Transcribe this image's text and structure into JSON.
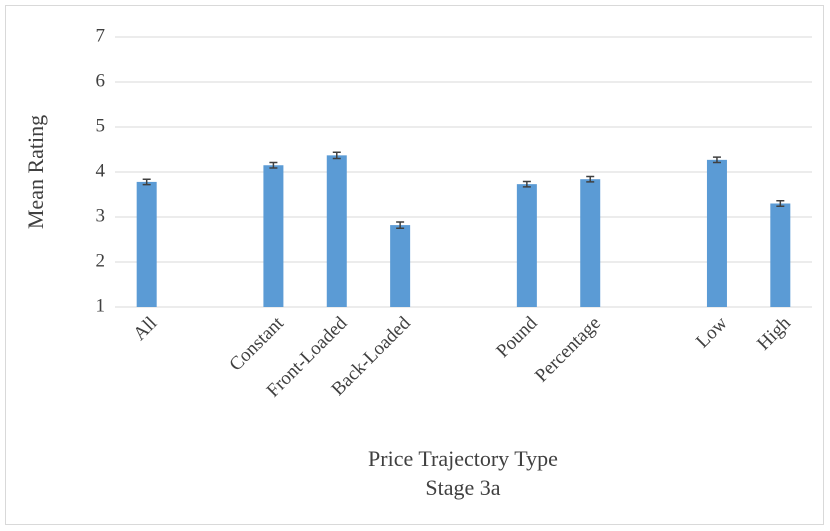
{
  "chart_data": {
    "type": "bar",
    "ylabel": "Mean Rating",
    "xlabel": "Price Trajectory Type",
    "note": "Stage 3a",
    "categories": [
      "All",
      null,
      "Constant",
      "Front-Loaded",
      "Back-Loaded",
      null,
      "Pound",
      "Percentage",
      null,
      "Low",
      "High"
    ],
    "values": [
      3.78,
      null,
      4.15,
      4.37,
      2.82,
      null,
      3.73,
      3.84,
      null,
      4.27,
      3.3
    ],
    "errors": [
      0.06,
      null,
      0.06,
      0.07,
      0.07,
      null,
      0.06,
      0.06,
      null,
      0.06,
      0.06
    ],
    "color": "#5b9bd5",
    "ylim": [
      1,
      7
    ],
    "yticks": [
      1,
      2,
      3,
      4,
      5,
      6,
      7
    ],
    "grid": true
  }
}
